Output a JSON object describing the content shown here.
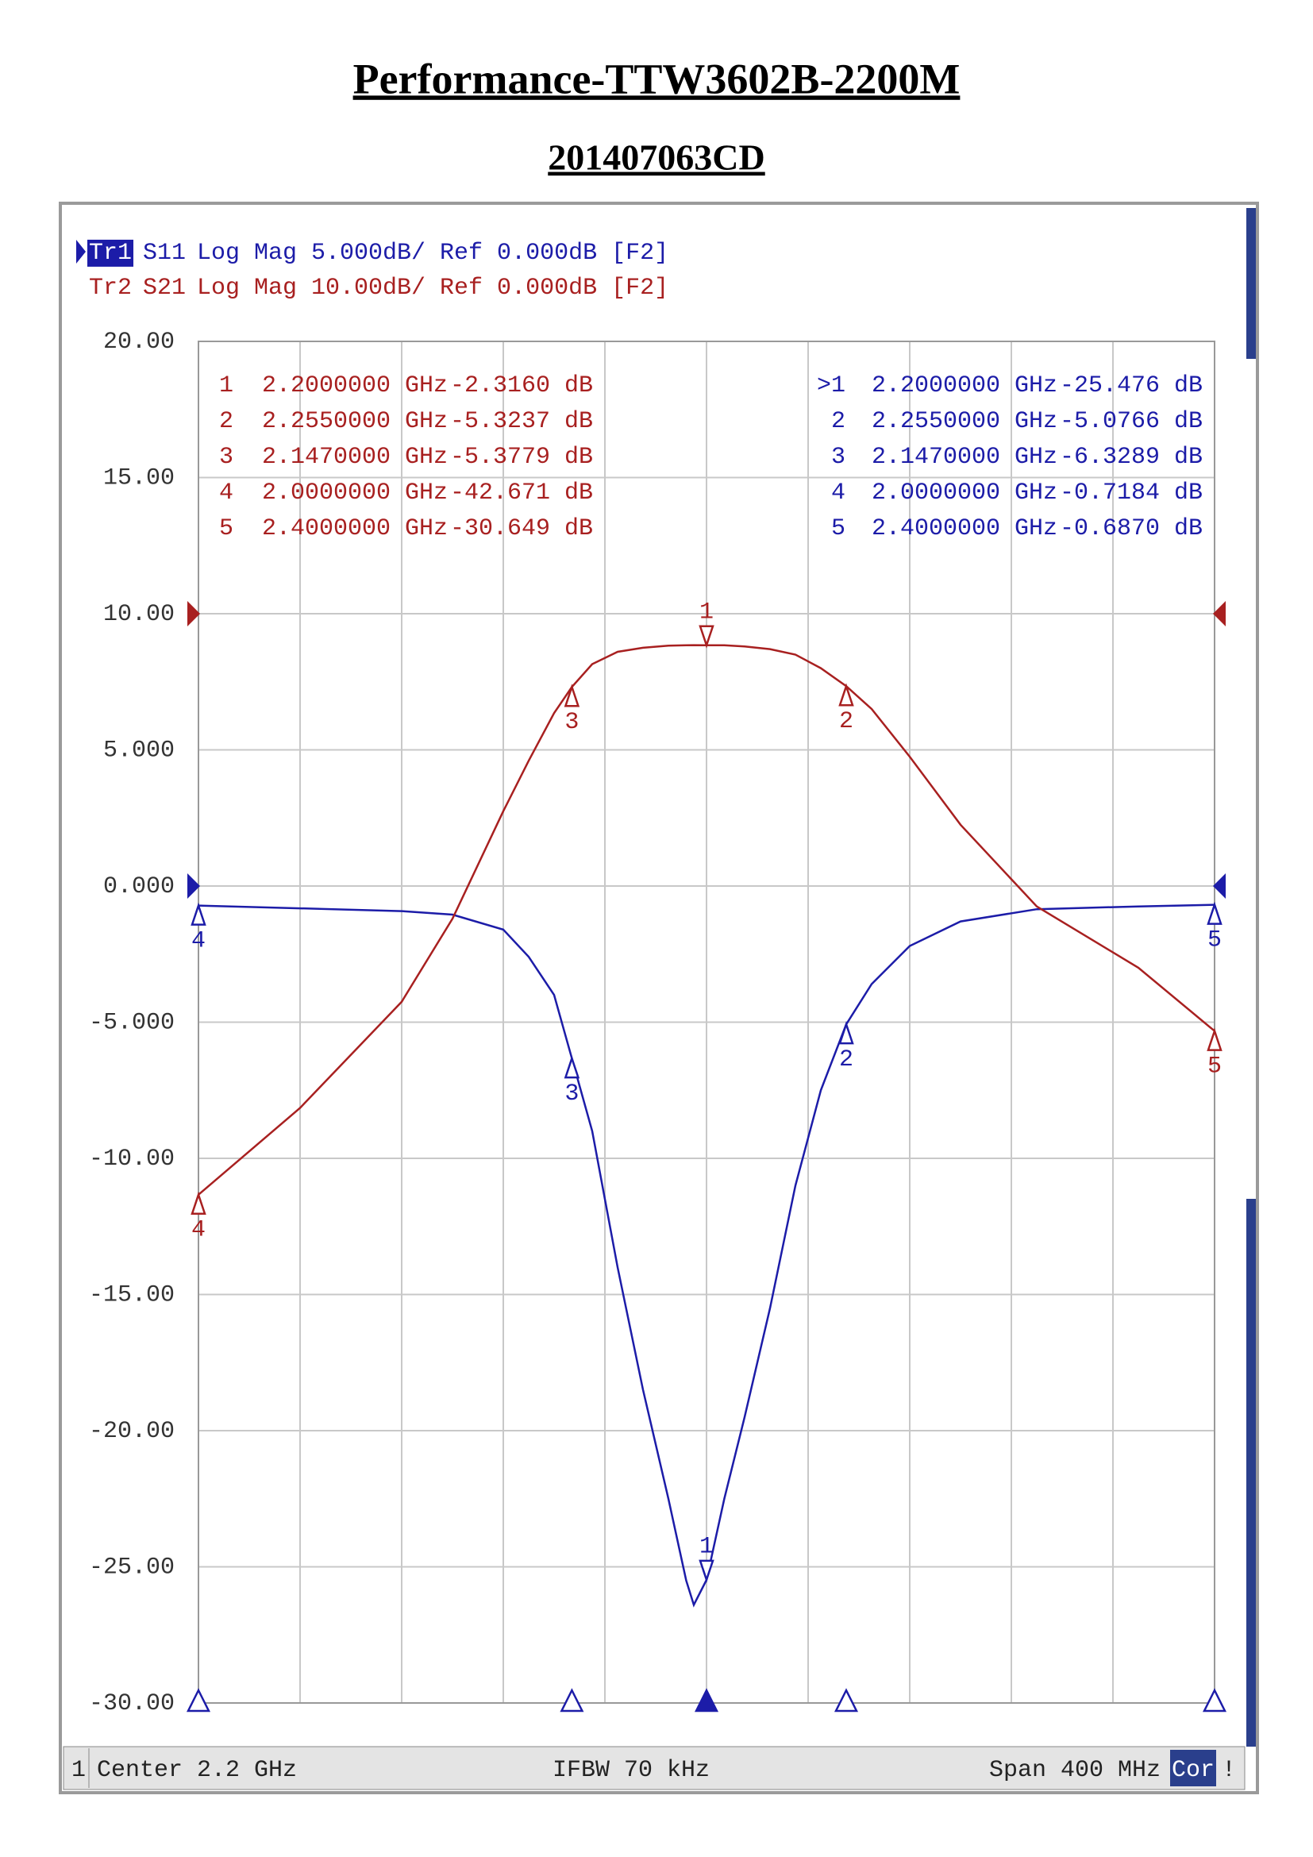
{
  "title": "Performance-TTW3602B-2200M",
  "subtitle": "201407063CD",
  "chart_data": {
    "type": "line",
    "x": [
      2.0,
      2.04,
      2.08,
      2.1,
      2.12,
      2.13,
      2.14,
      2.147,
      2.155,
      2.165,
      2.175,
      2.185,
      2.192,
      2.195,
      2.2,
      2.207,
      2.215,
      2.225,
      2.235,
      2.245,
      2.255,
      2.265,
      2.28,
      2.3,
      2.33,
      2.37,
      2.4
    ],
    "xlim": [
      2.0,
      2.4
    ],
    "ylim": [
      -30,
      20
    ],
    "y2lim": [
      -80,
      20
    ],
    "yticks": [
      {
        "value": 20,
        "label": "20.00"
      },
      {
        "value": 15,
        "label": "15.00"
      },
      {
        "value": 10,
        "label": "10.00"
      },
      {
        "value": 5,
        "label": "5.000"
      },
      {
        "value": 0,
        "label": "0.000"
      },
      {
        "value": -5,
        "label": "-5.000"
      },
      {
        "value": -10,
        "label": "-10.00"
      },
      {
        "value": -15,
        "label": "-15.00"
      },
      {
        "value": -20,
        "label": "-20.00"
      },
      {
        "value": -25,
        "label": "-25.00"
      },
      {
        "value": -30,
        "label": "-30.00"
      }
    ],
    "grid": true,
    "series": [
      {
        "tag": "Tr1",
        "name": "S11",
        "info": "Log Mag 5.000dB/ Ref 0.000dB [F2]",
        "color": "#1c1ca8",
        "ref": 0,
        "values": [
          -0.718,
          -0.82,
          -0.92,
          -1.05,
          -1.6,
          -2.6,
          -4.0,
          -6.33,
          -9.0,
          -14.0,
          -18.5,
          -22.5,
          -25.5,
          -26.4,
          -25.48,
          -22.5,
          -19.5,
          -15.5,
          -11.0,
          -7.5,
          -5.08,
          -3.6,
          -2.2,
          -1.3,
          -0.85,
          -0.75,
          -0.687
        ],
        "markers": {
          "labels": [
            "1",
            "2",
            "3",
            "4",
            "5"
          ],
          "table_labels": [
            ">1",
            "2",
            "3",
            "4",
            "5"
          ],
          "x": [
            2.2,
            2.255,
            2.147,
            2.0,
            2.4
          ],
          "x_labels": [
            "2.2000000 GHz",
            "2.2550000 GHz",
            "2.1470000 GHz",
            "2.0000000 GHz",
            "2.4000000 GHz"
          ],
          "values": [
            -25.476,
            -5.0766,
            -6.3289,
            -0.7184,
            -0.687
          ],
          "value_labels": [
            "-25.476 dB",
            "-5.0766 dB",
            "-6.3289 dB",
            "-0.7184 dB",
            "-0.6870 dB"
          ]
        }
      },
      {
        "tag": "Tr2",
        "name": "S21",
        "info": "Log Mag 10.00dB/ Ref 0.000dB [F2]",
        "color": "#a82020",
        "axis": "y2",
        "ref": 0,
        "values": [
          -42.671,
          -36.3,
          -28.5,
          -22.4,
          -14.5,
          -10.8,
          -7.3,
          -5.38,
          -3.7,
          -2.8,
          -2.5,
          -2.35,
          -2.32,
          -2.31,
          -2.316,
          -2.32,
          -2.4,
          -2.6,
          -3.0,
          -4.0,
          -5.32,
          -7.0,
          -10.5,
          -15.5,
          -21.5,
          -26.0,
          -30.649
        ],
        "markers": {
          "labels": [
            "1",
            "2",
            "3",
            "4",
            "5"
          ],
          "x": [
            2.2,
            2.255,
            2.147,
            2.0,
            2.4
          ],
          "x_labels": [
            "2.2000000 GHz",
            "2.2550000 GHz",
            "2.1470000 GHz",
            "2.0000000 GHz",
            "2.4000000 GHz"
          ],
          "values": [
            -2.316,
            -5.3237,
            -5.3779,
            -42.671,
            -30.649
          ],
          "value_labels": [
            "-2.3160 dB",
            "-5.3237 dB",
            "-5.3779 dB",
            "-42.671 dB",
            "-30.649 dB"
          ]
        }
      }
    ],
    "footer": {
      "channel": "1",
      "center": "Center 2.2 GHz",
      "ifbw": "IFBW 70 kHz",
      "span": "Span 400 MHz",
      "cor": "Cor",
      "flag": "!"
    }
  }
}
